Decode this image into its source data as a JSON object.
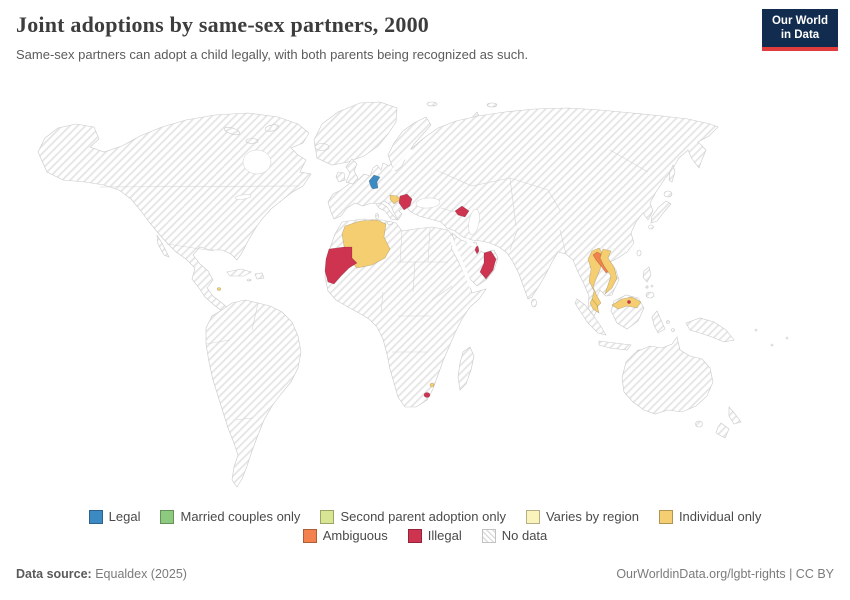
{
  "header": {
    "title": "Joint adoptions by same-sex partners, 2000",
    "subtitle": "Same-sex partners can adopt a child legally, with both parents being recognized as such.",
    "logo_line1": "Our World",
    "logo_line2": "in Data"
  },
  "legend": {
    "row1": [
      {
        "label": "Legal",
        "key": "legal"
      },
      {
        "label": "Married couples only",
        "key": "married"
      },
      {
        "label": "Second parent adoption only",
        "key": "second_parent"
      },
      {
        "label": "Varies by region",
        "key": "varies"
      },
      {
        "label": "Individual only",
        "key": "individual"
      }
    ],
    "row2": [
      {
        "label": "Ambiguous",
        "key": "ambiguous"
      },
      {
        "label": "Illegal",
        "key": "illegal"
      },
      {
        "label": "No data",
        "key": "no_data"
      }
    ]
  },
  "colors": {
    "legal": "#3C8AC3",
    "married": "#8DC97E",
    "second_parent": "#D8E592",
    "varies": "#FBF3BC",
    "individual": "#F4CE71",
    "ambiguous": "#F2814D",
    "illegal": "#CE3350",
    "no_data_hatch": "#E5E5E5",
    "land_border": "#CBCBCB",
    "logo_bg": "#112C4E",
    "logo_accent": "#E23D3D"
  },
  "chart_data": {
    "type": "choropleth-world-map",
    "title": "Joint adoptions by same-sex partners, 2000",
    "year": "2000",
    "legend_categories": [
      "Legal",
      "Married couples only",
      "Second parent adoption only",
      "Varies by region",
      "Individual only",
      "Ambiguous",
      "Illegal",
      "No data"
    ],
    "default_value": "No data",
    "countries": [
      {
        "name": "Netherlands",
        "value": "Legal",
        "key": "legal"
      },
      {
        "name": "Croatia",
        "value": "Individual only",
        "key": "individual"
      },
      {
        "name": "Serbia",
        "value": "Illegal",
        "key": "illegal"
      },
      {
        "name": "Azerbaijan",
        "value": "Illegal",
        "key": "illegal"
      },
      {
        "name": "Algeria",
        "value": "Individual only",
        "key": "individual"
      },
      {
        "name": "Mauritania",
        "value": "Illegal",
        "key": "illegal"
      },
      {
        "name": "Qatar",
        "value": "Illegal",
        "key": "illegal"
      },
      {
        "name": "Oman",
        "value": "Illegal",
        "key": "illegal"
      },
      {
        "name": "Lesotho",
        "value": "Illegal",
        "key": "illegal"
      },
      {
        "name": "Eswatini",
        "value": "Individual only",
        "key": "individual"
      },
      {
        "name": "Trinidad and Tobago",
        "value": "Individual only",
        "key": "individual"
      },
      {
        "name": "Thailand",
        "value": "Individual only",
        "key": "individual"
      },
      {
        "name": "Laos",
        "value": "Ambiguous",
        "key": "ambiguous"
      },
      {
        "name": "Vietnam",
        "value": "Individual only",
        "key": "individual"
      },
      {
        "name": "Malaysia",
        "value": "Individual only",
        "key": "individual"
      },
      {
        "name": "Brunei",
        "value": "Illegal",
        "key": "illegal"
      }
    ]
  },
  "footer": {
    "source_label": "Data source:",
    "source_value": " Equaldex (2025)",
    "rights": "OurWorldinData.org/lgbt-rights | CC BY"
  }
}
